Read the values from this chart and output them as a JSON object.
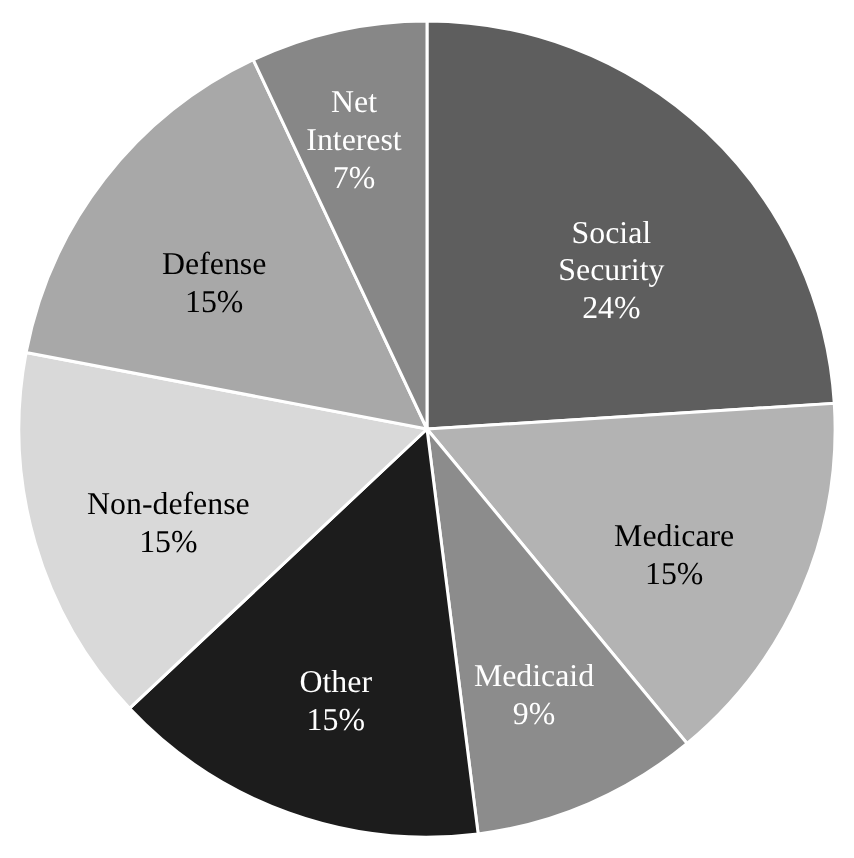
{
  "chart_data": {
    "type": "pie",
    "categories": [
      "Social Security",
      "Medicare",
      "Medicaid",
      "Other",
      "Non-defense",
      "Defense",
      "Net Interest"
    ],
    "values": [
      24,
      15,
      9,
      15,
      15,
      15,
      7
    ],
    "value_labels": [
      "24%",
      "15%",
      "9%",
      "15%",
      "15%",
      "15%",
      "7%"
    ],
    "colors": [
      "#5e5e5e",
      "#b3b3b3",
      "#8c8c8c",
      "#1c1c1c",
      "#d9d9d9",
      "#a8a8a8",
      "#878787"
    ],
    "legend": false
  }
}
